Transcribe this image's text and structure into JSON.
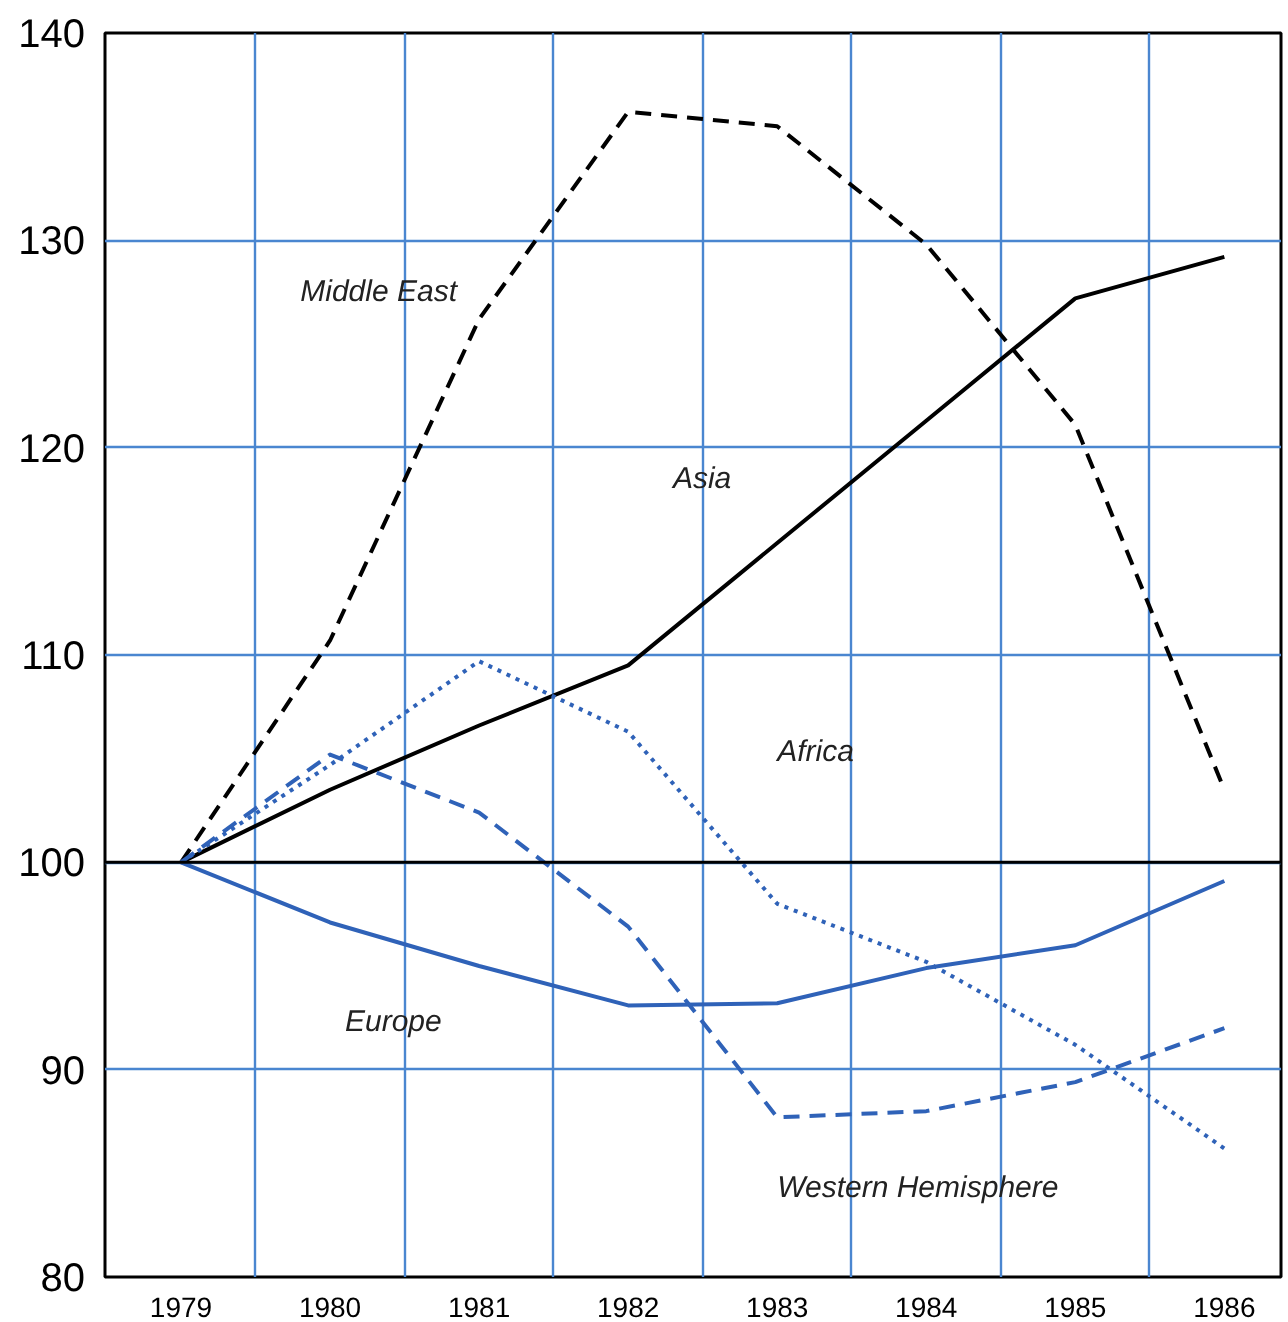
{
  "chart_data": {
    "type": "line",
    "x": [
      1979,
      1980,
      1981,
      1982,
      1983,
      1984,
      1985,
      1986
    ],
    "xlim": [
      1978.49,
      1986.38
    ],
    "xticks": [
      1979,
      1980,
      1981,
      1982,
      1983,
      1984,
      1985,
      1986
    ],
    "ylim": [
      80,
      140
    ],
    "yticks": [
      80,
      90,
      100,
      110,
      120,
      130,
      140
    ],
    "grid": true,
    "ref_lines": [
      {
        "axis": "y",
        "value": 100,
        "color": "#000000"
      }
    ],
    "series": [
      {
        "name": "Middle East",
        "color": "#000000",
        "line_style": "dashed",
        "values": [
          100,
          110.7,
          126.2,
          136.2,
          135.5,
          129.8,
          121.1,
          103.5
        ]
      },
      {
        "name": "Asia",
        "color": "#000000",
        "line_style": "solid",
        "values": [
          100,
          103.5,
          106.6,
          109.5,
          115.4,
          121.3,
          127.2,
          129.2
        ]
      },
      {
        "name": "Africa",
        "color": "#2f62b8",
        "line_style": "dotted",
        "values": [
          100,
          104.7,
          109.7,
          106.3,
          98.0,
          95.2,
          91.2,
          86.2
        ]
      },
      {
        "name": "Europe",
        "color": "#2f62b8",
        "line_style": "solid",
        "values": [
          100,
          97.1,
          95.0,
          93.1,
          93.2,
          94.9,
          96.0,
          99.1
        ]
      },
      {
        "name": "Western Hemisphere",
        "color": "#2f62b8",
        "line_style": "dashed",
        "values": [
          100,
          105.2,
          102.4,
          96.9,
          87.7,
          88.0,
          89.4,
          92.0
        ]
      }
    ]
  }
}
